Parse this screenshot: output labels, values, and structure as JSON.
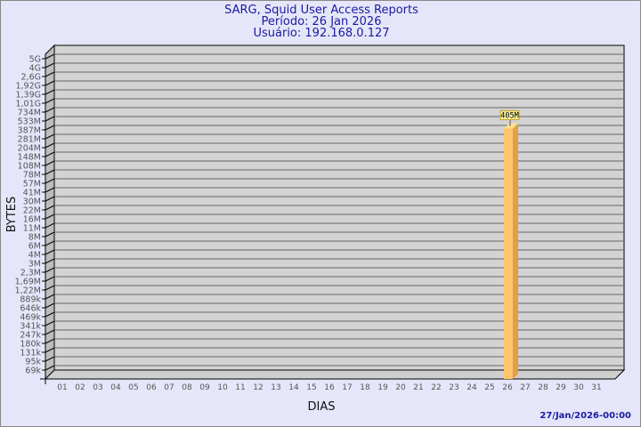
{
  "header": {
    "title": "SARG, Squid User Access Reports",
    "period": "Período: 26 Jan 2026",
    "user": "Usuário: 192.168.0.127"
  },
  "footer": {
    "timestamp": "27/Jan/2026-00:00"
  },
  "chart_data": {
    "type": "bar",
    "xlabel": "DIAS",
    "ylabel": "BYTES",
    "yscale": "log",
    "y_tick_labels": [
      "5G",
      "4G",
      "2,6G",
      "1,92G",
      "1,39G",
      "1,01G",
      "734M",
      "533M",
      "387M",
      "281M",
      "204M",
      "148M",
      "108M",
      "78M",
      "57M",
      "41M",
      "30M",
      "22M",
      "16M",
      "11M",
      "8M",
      "6M",
      "4M",
      "3M",
      "2,3M",
      "1,69M",
      "1,22M",
      "889k",
      "646k",
      "469k",
      "341k",
      "247k",
      "180k",
      "131k",
      "95k",
      "69k"
    ],
    "categories": [
      "01",
      "02",
      "03",
      "04",
      "05",
      "06",
      "07",
      "08",
      "09",
      "10",
      "11",
      "12",
      "13",
      "14",
      "15",
      "16",
      "17",
      "18",
      "19",
      "20",
      "21",
      "22",
      "23",
      "24",
      "25",
      "26",
      "27",
      "28",
      "29",
      "30",
      "31"
    ],
    "values": [
      {
        "day": "26",
        "value_bytes": 405000000,
        "label": "405M"
      }
    ],
    "grid": true,
    "colors": {
      "bar_front": "#ffc56b",
      "bar_side": "#dfa048",
      "bar_top": "#ffe08a",
      "wall": "#d3d3d3",
      "label_box": "#f5f0a0"
    }
  }
}
